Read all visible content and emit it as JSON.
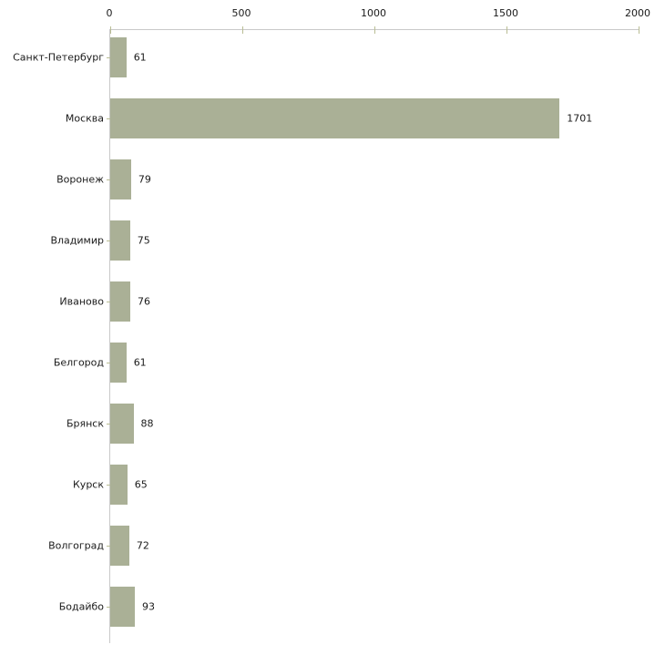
{
  "chart_data": {
    "type": "bar",
    "orientation": "horizontal",
    "title": "",
    "xlabel": "",
    "ylabel": "",
    "categories": [
      "Санкт-Петербург",
      "Москва",
      "Воронеж",
      "Владимир",
      "Иваново",
      "Белгород",
      "Брянск",
      "Курск",
      "Волгоград",
      "Бодайбо"
    ],
    "values": [
      61,
      1701,
      79,
      75,
      76,
      61,
      88,
      65,
      72,
      93
    ],
    "x_ticks": [
      0,
      500,
      1000,
      1500,
      2000
    ],
    "xlim": [
      0,
      2000
    ],
    "grid": false,
    "legend": null,
    "axis_position": "top",
    "bar_color": "#aab096",
    "axis_color": "#c9c9c9",
    "tick_color": "#b9bd94",
    "text_color": "#1a1a1a"
  }
}
